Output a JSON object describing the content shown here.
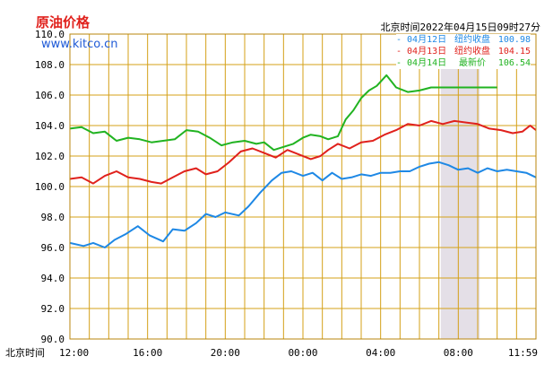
{
  "header": {
    "title": "原油价格",
    "site": "www.kitco.cn",
    "timestamp": "北京时间2022年04月15日09时27分"
  },
  "legend": [
    {
      "date": "- 04月12日",
      "label": "纽约收盘",
      "value": "100.98",
      "color": "#1e88e5"
    },
    {
      "date": "- 04月13日",
      "label": "纽约收盘",
      "value": "104.15",
      "color": "#e0211c"
    },
    {
      "date": "- 04月14日",
      "label": "最新价",
      "value": "106.54",
      "color": "#21b321"
    }
  ],
  "chart_data": {
    "type": "line",
    "xlabel": "北京时间",
    "x_ticks": [
      "12:00",
      "16:00",
      "20:00",
      "00:00",
      "04:00",
      "08:00",
      "11:59"
    ],
    "x_range_hours": [
      0,
      24
    ],
    "y_ticks": [
      "110.0",
      "108.0",
      "106.0",
      "104.0",
      "102.0",
      "100.0",
      "98.0",
      "96.0",
      "94.0",
      "92.0",
      "90.0"
    ],
    "ylim": [
      90,
      110
    ],
    "shaded_band_hours": [
      19.1,
      21.1
    ],
    "grid": true,
    "series": [
      {
        "name": "04月12日 纽约收盘",
        "color": "#1e88e5",
        "x": [
          0,
          0.7,
          1.2,
          1.8,
          2.3,
          2.9,
          3.5,
          4.1,
          4.8,
          5.3,
          5.9,
          6.5,
          7.0,
          7.5,
          8.0,
          8.7,
          9.2,
          9.8,
          10.4,
          10.9,
          11.4,
          12.0,
          12.5,
          13.0,
          13.5,
          14.0,
          14.5,
          15.0,
          15.5,
          16.0,
          16.5,
          17.0,
          17.5,
          18.0,
          18.5,
          19.0,
          19.5,
          20.0,
          20.5,
          21.0,
          21.5,
          22.0,
          22.5,
          23.0,
          23.5,
          24.0
        ],
        "y": [
          96.3,
          96.1,
          96.3,
          96.0,
          96.5,
          96.9,
          97.4,
          96.8,
          96.4,
          97.2,
          97.1,
          97.6,
          98.2,
          98.0,
          98.3,
          98.1,
          98.7,
          99.6,
          100.4,
          100.9,
          101.0,
          100.7,
          100.9,
          100.4,
          100.9,
          100.5,
          100.6,
          100.8,
          100.7,
          100.9,
          100.9,
          101.0,
          101.0,
          101.3,
          101.5,
          101.6,
          101.4,
          101.1,
          101.2,
          100.9,
          101.2,
          101.0,
          101.1,
          101.0,
          100.9,
          100.6
        ]
      },
      {
        "name": "04月13日 纽约收盘",
        "color": "#e0211c",
        "x": [
          0,
          0.6,
          1.2,
          1.8,
          2.4,
          3.0,
          3.6,
          4.2,
          4.7,
          5.3,
          5.9,
          6.5,
          7.0,
          7.6,
          8.2,
          8.8,
          9.4,
          10.0,
          10.6,
          11.2,
          11.8,
          12.4,
          12.9,
          13.3,
          13.8,
          14.4,
          15.0,
          15.6,
          16.2,
          16.8,
          17.4,
          18.0,
          18.6,
          19.2,
          19.8,
          20.4,
          21.0,
          21.6,
          22.2,
          22.8,
          23.3,
          23.7,
          24.0
        ],
        "y": [
          100.5,
          100.6,
          100.2,
          100.7,
          101.0,
          100.6,
          100.5,
          100.3,
          100.2,
          100.6,
          101.0,
          101.2,
          100.8,
          101.0,
          101.6,
          102.3,
          102.5,
          102.2,
          101.9,
          102.4,
          102.1,
          101.8,
          102.0,
          102.4,
          102.8,
          102.5,
          102.9,
          103.0,
          103.4,
          103.7,
          104.1,
          104.0,
          104.3,
          104.1,
          104.3,
          104.2,
          104.1,
          103.8,
          103.7,
          103.5,
          103.6,
          104.0,
          103.7
        ]
      },
      {
        "name": "04月14日 最新价",
        "color": "#21b321",
        "x": [
          0,
          0.6,
          1.2,
          1.8,
          2.4,
          3.0,
          3.6,
          4.2,
          4.8,
          5.4,
          6.0,
          6.6,
          7.2,
          7.8,
          8.4,
          9.0,
          9.6,
          10.0,
          10.5,
          11.0,
          11.5,
          12.0,
          12.4,
          12.9,
          13.3,
          13.8,
          14.2,
          14.6,
          15.0,
          15.4,
          15.8,
          16.3,
          16.8,
          17.4,
          18.0,
          18.6,
          19.2,
          19.8,
          20.4,
          21.0,
          21.6,
          22.0
        ],
        "y": [
          103.8,
          103.9,
          103.5,
          103.6,
          103.0,
          103.2,
          103.1,
          102.9,
          103.0,
          103.1,
          103.7,
          103.6,
          103.2,
          102.7,
          102.9,
          103.0,
          102.8,
          102.9,
          102.4,
          102.6,
          102.8,
          103.2,
          103.4,
          103.3,
          103.1,
          103.3,
          104.4,
          105.0,
          105.8,
          106.3,
          106.6,
          107.3,
          106.5,
          106.2,
          106.3,
          106.5,
          106.5,
          106.5,
          106.5,
          106.5,
          106.5,
          106.5
        ]
      }
    ]
  }
}
